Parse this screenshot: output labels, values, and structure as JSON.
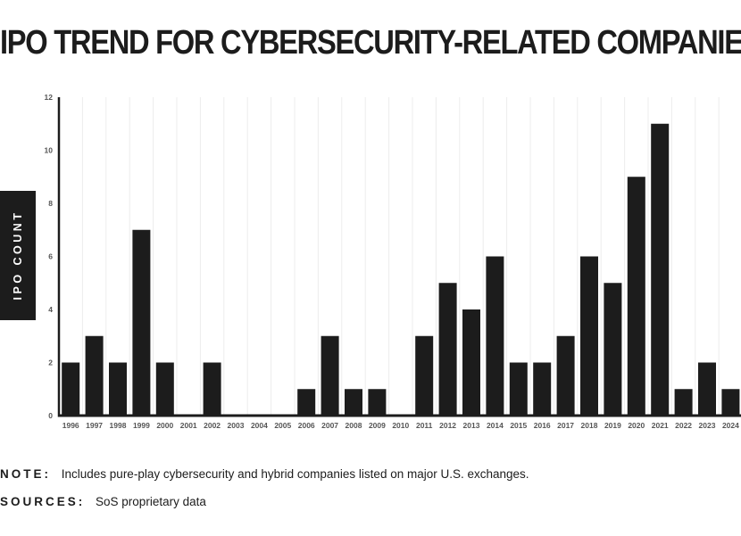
{
  "chart_data": {
    "type": "bar",
    "title": "IPO TREND FOR CYBERSECURITY-RELATED COMPANIES",
    "xlabel": "",
    "ylabel": "IPO COUNT",
    "categories": [
      "1996",
      "1997",
      "1998",
      "1999",
      "2000",
      "2001",
      "2002",
      "2003",
      "2004",
      "2005",
      "2006",
      "2007",
      "2008",
      "2009",
      "2010",
      "2011",
      "2012",
      "2013",
      "2014",
      "2015",
      "2016",
      "2017",
      "2018",
      "2019",
      "2020",
      "2021",
      "2022",
      "2023",
      "2024"
    ],
    "values": [
      2,
      3,
      2,
      7,
      2,
      0,
      2,
      0,
      0,
      0,
      1,
      3,
      1,
      1,
      0,
      3,
      5,
      4,
      6,
      2,
      2,
      3,
      6,
      5,
      9,
      11,
      1,
      2,
      1
    ],
    "ylim": [
      0,
      12
    ],
    "yticks": [
      0,
      2,
      4,
      6,
      8,
      10,
      12
    ],
    "grid": "vertical",
    "bar_color": "#1c1c1c",
    "grid_color": "#ececec"
  },
  "footer": {
    "note_label": "NOTE:",
    "note_text": "Includes pure-play cybersecurity and hybrid companies listed on major U.S. exchanges.",
    "sources_label": "SOURCES:",
    "sources_text": "SoS proprietary data"
  }
}
